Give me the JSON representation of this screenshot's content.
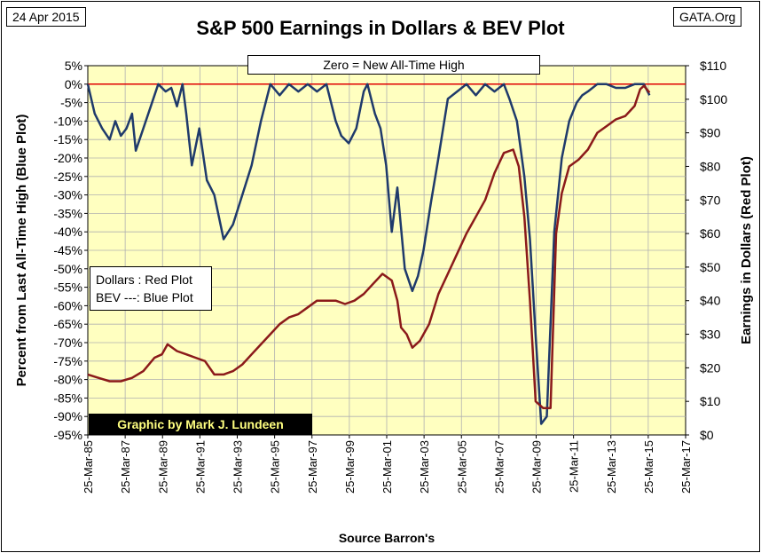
{
  "header": {
    "date": "24 Apr 2015",
    "source_site": "GATA.Org"
  },
  "chart_data": {
    "type": "line",
    "title": "S&P 500 Earnings in Dollars & BEV Plot",
    "xlabel": "Source Barron's",
    "ylabel_left": "Percent from Last All-Time High (Blue Plot)",
    "ylabel_right": "Earnings in Dollars (Red Plot)",
    "x_ticks": [
      "25-Mar-85",
      "25-Mar-87",
      "25-Mar-89",
      "25-Mar-91",
      "25-Mar-93",
      "25-Mar-95",
      "25-Mar-97",
      "25-Mar-99",
      "25-Mar-01",
      "25-Mar-03",
      "25-Mar-05",
      "25-Mar-07",
      "25-Mar-09",
      "25-Mar-11",
      "25-Mar-13",
      "25-Mar-15",
      "25-Mar-17"
    ],
    "xlim": [
      1985.23,
      2017.23
    ],
    "y_left_ticks": [
      "5%",
      "0%",
      "-5%",
      "-10%",
      "-15%",
      "-20%",
      "-25%",
      "-30%",
      "-35%",
      "-40%",
      "-45%",
      "-50%",
      "-55%",
      "-60%",
      "-65%",
      "-70%",
      "-75%",
      "-80%",
      "-85%",
      "-90%",
      "-95%"
    ],
    "y_left_lim": [
      -95,
      5
    ],
    "y_right_ticks": [
      "$110",
      "$100",
      "$90",
      "$80",
      "$70",
      "$60",
      "$50",
      "$40",
      "$30",
      "$20",
      "$10",
      "$0"
    ],
    "y_right_lim": [
      0,
      110
    ],
    "grid": true,
    "annotations": {
      "zero_label": "Zero = New All-Time High",
      "legend_line1": "Dollars : Red Plot",
      "legend_line2": "BEV ---: Blue Plot",
      "credit": "Graphic by Mark J. Lundeen"
    },
    "series": [
      {
        "name": "BEV",
        "axis": "left",
        "color": "#1f3a6b",
        "x": [
          1985.23,
          1985.6,
          1986.0,
          1986.4,
          1986.7,
          1987.0,
          1987.3,
          1987.6,
          1987.8,
          1988.2,
          1988.6,
          1989.0,
          1989.4,
          1989.7,
          1990.0,
          1990.3,
          1990.5,
          1990.8,
          1991.2,
          1991.6,
          1992.0,
          1992.5,
          1993.0,
          1993.5,
          1994.0,
          1994.5,
          1995.0,
          1995.5,
          1996.0,
          1996.5,
          1997.0,
          1997.5,
          1998.0,
          1998.5,
          1998.8,
          1999.2,
          1999.6,
          2000.0,
          2000.2,
          2000.6,
          2000.9,
          2001.2,
          2001.5,
          2001.8,
          2002.2,
          2002.6,
          2002.9,
          2003.2,
          2003.6,
          2004.0,
          2004.5,
          2005.0,
          2005.5,
          2006.0,
          2006.5,
          2007.0,
          2007.5,
          2007.8,
          2008.2,
          2008.6,
          2008.9,
          2009.2,
          2009.5,
          2009.8,
          2010.2,
          2010.6,
          2011.0,
          2011.4,
          2011.7,
          2012.0,
          2012.5,
          2013.0,
          2013.5,
          2014.0,
          2014.5,
          2015.0,
          2015.3
        ],
        "values": [
          0,
          -8,
          -12,
          -15,
          -10,
          -14,
          -12,
          -8,
          -18,
          -12,
          -6,
          0,
          -2,
          -1,
          -6,
          0,
          -8,
          -22,
          -12,
          -26,
          -30,
          -42,
          -38,
          -30,
          -22,
          -10,
          0,
          -3,
          0,
          -2,
          0,
          -2,
          0,
          -10,
          -14,
          -16,
          -12,
          -2,
          0,
          -8,
          -12,
          -22,
          -40,
          -28,
          -50,
          -56,
          -52,
          -45,
          -32,
          -20,
          -4,
          -2,
          0,
          -3,
          0,
          -2,
          0,
          -4,
          -10,
          -25,
          -42,
          -68,
          -92,
          -90,
          -40,
          -20,
          -10,
          -5,
          -3,
          -2,
          0,
          0,
          -1,
          -1,
          0,
          0,
          -3
        ],
        "stroke_width": 2.5
      },
      {
        "name": "Earnings",
        "axis": "right",
        "color": "#8b1a1a",
        "x": [
          1985.23,
          1985.8,
          1986.4,
          1987.0,
          1987.6,
          1988.2,
          1988.8,
          1989.2,
          1989.5,
          1990.0,
          1990.5,
          1991.0,
          1991.5,
          1992.0,
          1992.5,
          1993.0,
          1993.5,
          1994.0,
          1994.5,
          1995.0,
          1995.5,
          1996.0,
          1996.5,
          1997.0,
          1997.5,
          1998.0,
          1998.5,
          1999.0,
          1999.5,
          2000.0,
          2000.5,
          2001.0,
          2001.5,
          2001.8,
          2002.0,
          2002.3,
          2002.6,
          2003.0,
          2003.5,
          2004.0,
          2004.5,
          2005.0,
          2005.5,
          2006.0,
          2006.5,
          2007.0,
          2007.5,
          2008.0,
          2008.3,
          2008.6,
          2008.9,
          2009.2,
          2009.6,
          2010.0,
          2010.3,
          2010.6,
          2011.0,
          2011.5,
          2012.0,
          2012.5,
          2013.0,
          2013.5,
          2014.0,
          2014.5,
          2014.8,
          2015.0,
          2015.3
        ],
        "values": [
          18,
          17,
          16,
          16,
          17,
          19,
          23,
          24,
          27,
          25,
          24,
          23,
          22,
          18,
          18,
          19,
          21,
          24,
          27,
          30,
          33,
          35,
          36,
          38,
          40,
          40,
          40,
          39,
          40,
          42,
          45,
          48,
          46,
          40,
          32,
          30,
          26,
          28,
          33,
          42,
          48,
          54,
          60,
          65,
          70,
          78,
          84,
          85,
          80,
          65,
          40,
          10,
          8,
          8,
          60,
          72,
          80,
          82,
          85,
          90,
          92,
          94,
          95,
          98,
          103,
          104,
          102
        ],
        "stroke_width": 2.5
      }
    ]
  }
}
